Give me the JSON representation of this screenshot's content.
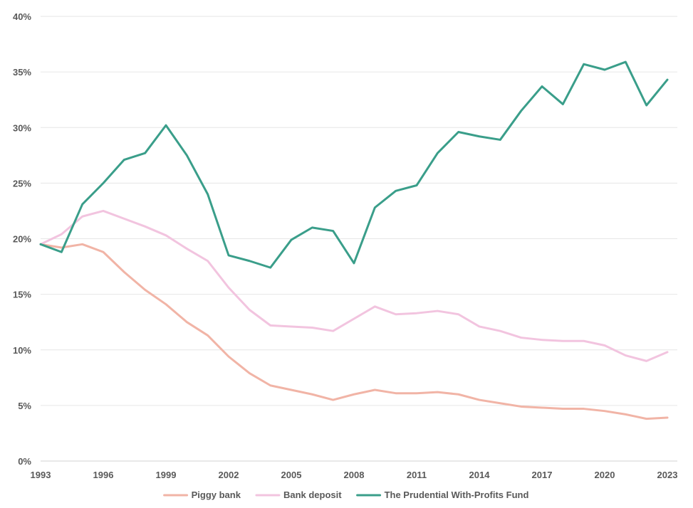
{
  "chart_data": {
    "type": "line",
    "title": "",
    "xlabel": "",
    "ylabel": "",
    "x": [
      1993,
      1994,
      1995,
      1996,
      1997,
      1998,
      1999,
      2000,
      2001,
      2002,
      2003,
      2004,
      2005,
      2006,
      2007,
      2008,
      2009,
      2010,
      2011,
      2012,
      2013,
      2014,
      2015,
      2016,
      2017,
      2018,
      2019,
      2020,
      2021,
      2022,
      2023
    ],
    "x_tick_labels": [
      "1993",
      "1996",
      "1999",
      "2002",
      "2005",
      "2008",
      "2011",
      "2014",
      "2017",
      "2020",
      "2023"
    ],
    "y_tick_labels": [
      "0%",
      "5%",
      "10%",
      "15%",
      "20%",
      "25%",
      "30%",
      "35%",
      "40%"
    ],
    "ylim": [
      0,
      40
    ],
    "grid": true,
    "legend_position": "bottom",
    "series": [
      {
        "name": "Piggy bank",
        "color": "#f1b4a6",
        "values": [
          19.5,
          19.2,
          19.5,
          18.8,
          17.0,
          15.4,
          14.1,
          12.5,
          11.3,
          9.4,
          7.9,
          6.8,
          6.4,
          6.0,
          5.5,
          6.0,
          6.4,
          6.1,
          6.1,
          6.2,
          6.0,
          5.5,
          5.2,
          4.9,
          4.8,
          4.7,
          4.7,
          4.5,
          4.2,
          3.8,
          3.9
        ]
      },
      {
        "name": "Bank deposit",
        "color": "#f2c4df",
        "values": [
          19.5,
          20.4,
          22.0,
          22.5,
          21.8,
          21.1,
          20.3,
          19.1,
          18.0,
          15.6,
          13.6,
          12.2,
          12.1,
          12.0,
          11.7,
          12.8,
          13.9,
          13.2,
          13.3,
          13.5,
          13.2,
          12.1,
          11.7,
          11.1,
          10.9,
          10.8,
          10.8,
          10.4,
          9.5,
          9.0,
          9.8
        ]
      },
      {
        "name": "The Prudential With-Profits Fund",
        "color": "#3a9e8a",
        "values": [
          19.5,
          18.8,
          23.1,
          25.0,
          27.1,
          27.7,
          30.2,
          27.5,
          24.0,
          18.5,
          18.0,
          17.4,
          19.9,
          21.0,
          20.7,
          17.8,
          22.8,
          24.3,
          24.8,
          27.7,
          29.6,
          29.2,
          28.9,
          31.5,
          33.7,
          32.1,
          35.7,
          35.2,
          35.9,
          32.0,
          34.3
        ]
      }
    ]
  }
}
